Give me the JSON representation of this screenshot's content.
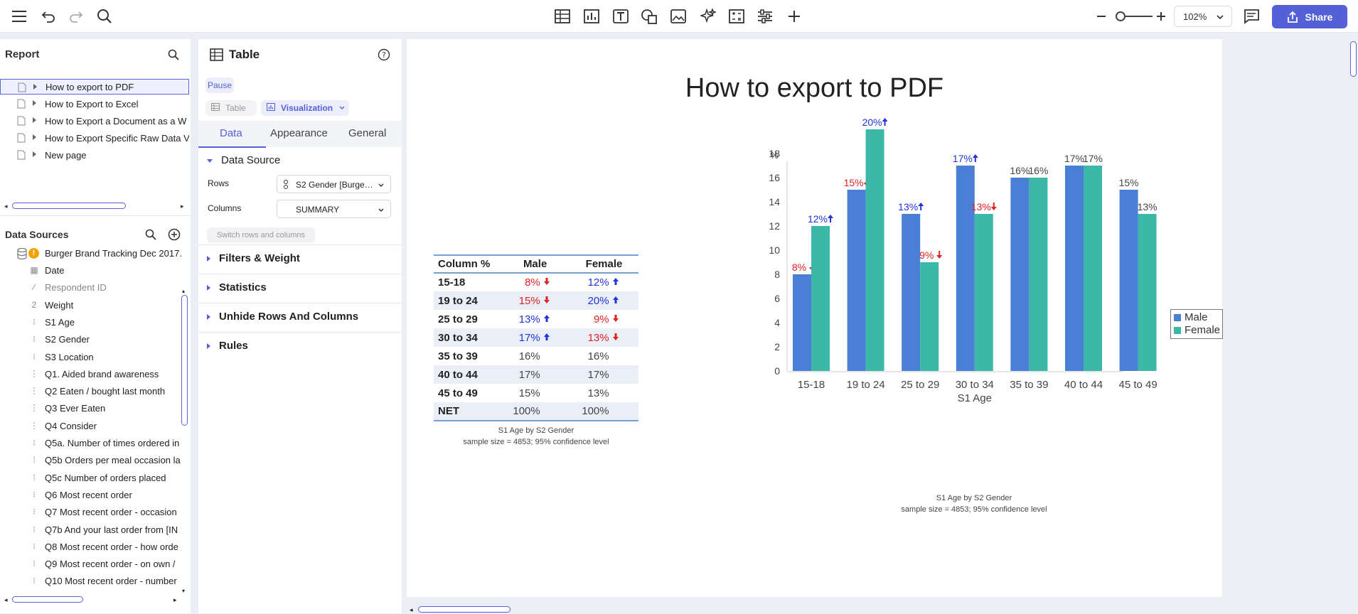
{
  "toolbar": {
    "icons": [
      "menu-icon",
      "undo-icon",
      "redo-icon",
      "search-icon",
      "table-icon",
      "chart-icon",
      "text-icon",
      "shapes-icon",
      "image-icon",
      "ai-sparkle-icon",
      "calculation-icon",
      "controls-icon",
      "add-icon",
      "zoom-out-icon",
      "zoom-in-icon",
      "comments-icon",
      "share-icon"
    ],
    "zoom": "102%",
    "share_label": "Share"
  },
  "report": {
    "title": "Report",
    "pages": [
      "How to export to PDF",
      "How to Export to Excel",
      "How to Export a Document as a W",
      "How to Export Specific Raw Data V",
      "New page"
    ]
  },
  "data_sources": {
    "title": "Data Sources",
    "dataset": "Burger Brand Tracking Dec 2017.",
    "variables": [
      {
        "label": "Date",
        "icon": "calendar-icon"
      },
      {
        "label": "Respondent ID",
        "icon": "disabled-variable-icon"
      },
      {
        "label": "Weight",
        "icon": "numeric-icon"
      },
      {
        "label": "S1 Age",
        "icon": "nominal-icon"
      },
      {
        "label": "S2 Gender",
        "icon": "nominal-icon"
      },
      {
        "label": "S3 Location",
        "icon": "nominal-icon"
      },
      {
        "label": "Q1. Aided brand awareness",
        "icon": "multi-icon"
      },
      {
        "label": "Q2 Eaten / bought last month",
        "icon": "multi-icon"
      },
      {
        "label": "Q3 Ever Eaten",
        "icon": "multi-icon"
      },
      {
        "label": "Q4 Consider",
        "icon": "multi-icon"
      },
      {
        "label": "Q5a. Number of times ordered in",
        "icon": "nominal-icon"
      },
      {
        "label": "Q5b Orders per meal occasion la",
        "icon": "grid-icon"
      },
      {
        "label": "Q5c Number of orders placed",
        "icon": "grid-icon"
      },
      {
        "label": "Q6 Most recent order",
        "icon": "nominal-icon"
      },
      {
        "label": "Q7 Most recent order - occasion",
        "icon": "nominal-icon"
      },
      {
        "label": "Q7b And your last order from [IN",
        "icon": "nominal-icon"
      },
      {
        "label": "Q8 Most recent order - how orde",
        "icon": "nominal-icon"
      },
      {
        "label": "Q9 Most recent order - on own /",
        "icon": "nominal-icon"
      },
      {
        "label": "Q10 Most recent order - number",
        "icon": "nominal-icon"
      }
    ]
  },
  "object_panel": {
    "title": "Table",
    "pause_label": "Pause",
    "type_table_label": "Table",
    "type_viz_label": "Visualization",
    "tabs": [
      "Data",
      "Appearance",
      "General"
    ],
    "data_source_heading": "Data Source",
    "rows_label": "Rows",
    "rows_value": "S2 Gender [Burge…",
    "columns_label": "Columns",
    "columns_value": "SUMMARY",
    "switch_label": "Switch rows and columns",
    "sections": [
      "Filters & Weight",
      "Statistics",
      "Unhide Rows And Columns",
      "Rules"
    ]
  },
  "page": {
    "heading": "How to export to PDF"
  },
  "table": {
    "headers": [
      "Column %",
      "Male",
      "Female"
    ],
    "rows": [
      {
        "label": "15-18",
        "male": "8%",
        "male_sig": "down",
        "female": "12%",
        "female_sig": "up"
      },
      {
        "label": "19 to 24",
        "male": "15%",
        "male_sig": "down",
        "female": "20%",
        "female_sig": "up"
      },
      {
        "label": "25 to 29",
        "male": "13%",
        "male_sig": "up",
        "female": "9%",
        "female_sig": "down"
      },
      {
        "label": "30 to 34",
        "male": "17%",
        "male_sig": "up",
        "female": "13%",
        "female_sig": "down"
      },
      {
        "label": "35 to 39",
        "male": "16%",
        "male_sig": "",
        "female": "16%",
        "female_sig": ""
      },
      {
        "label": "40 to 44",
        "male": "17%",
        "male_sig": "",
        "female": "17%",
        "female_sig": ""
      },
      {
        "label": "45 to 49",
        "male": "15%",
        "male_sig": "",
        "female": "13%",
        "female_sig": ""
      },
      {
        "label": "NET",
        "male": "100%",
        "male_sig": "",
        "female": "100%",
        "female_sig": ""
      }
    ],
    "caption_line1": "S1 Age by S2 Gender",
    "caption_line2": "sample size = 4853; 95% confidence level"
  },
  "chart_data": {
    "type": "bar",
    "categories": [
      "15-18",
      "19 to 24",
      "25 to 29",
      "30 to 34",
      "35 to 39",
      "40 to 44",
      "45 to 49"
    ],
    "series": [
      {
        "name": "Male",
        "color": "#4a7fd6",
        "values": [
          8,
          15,
          13,
          17,
          16,
          17,
          15
        ],
        "sig": [
          "down",
          "down",
          "up",
          "up",
          "",
          "",
          ""
        ]
      },
      {
        "name": "Female",
        "color": "#3bb8a8",
        "values": [
          12,
          20,
          9,
          13,
          16,
          17,
          13
        ],
        "sig": [
          "up",
          "up",
          "down",
          "down",
          "",
          "",
          ""
        ]
      }
    ],
    "xlabel": "S1 Age",
    "ylabel": "%",
    "ylim": [
      0,
      20
    ],
    "yticks": [
      0,
      2,
      4,
      6,
      8,
      10,
      12,
      14,
      16,
      18
    ],
    "legend": "right",
    "sig_colors": {
      "up": "#2233dd",
      "down": "#e02222",
      "none": "#444444"
    },
    "caption_line1": "S1 Age by S2 Gender",
    "caption_line2": "sample size = 4853; 95% confidence level"
  }
}
